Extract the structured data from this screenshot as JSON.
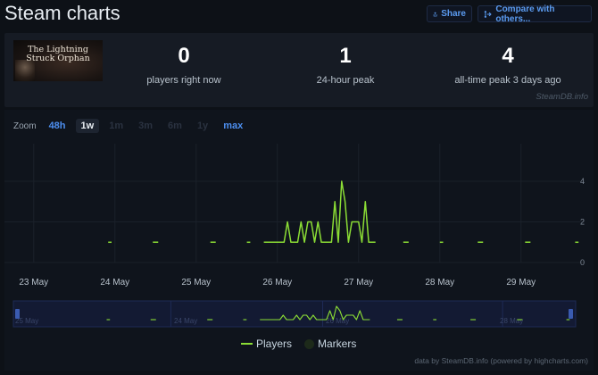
{
  "header": {
    "title": "Steam charts",
    "share_label": "Share",
    "compare_label": "Compare with others...",
    "share_icon": "share-icon",
    "compare_icon": "compare-icon"
  },
  "game": {
    "thumb_title": "The Lightning Struck Orphan"
  },
  "stats": {
    "now_value": "0",
    "now_label": "players right now",
    "peak24_value": "1",
    "peak24_label": "24-hour peak",
    "alltime_value": "4",
    "alltime_label": "all-time peak 3 days ago"
  },
  "watermark": "SteamDB.info",
  "zoom": {
    "label": "Zoom",
    "buttons": [
      {
        "label": "48h",
        "state": "active"
      },
      {
        "label": "1w",
        "state": "selected"
      },
      {
        "label": "1m",
        "state": "disabled"
      },
      {
        "label": "3m",
        "state": "disabled"
      },
      {
        "label": "6m",
        "state": "disabled"
      },
      {
        "label": "1y",
        "state": "disabled"
      },
      {
        "label": "max",
        "state": "active"
      }
    ]
  },
  "legend": {
    "players": "Players",
    "markers": "Markers"
  },
  "credit": "data by SteamDB.info (powered by highcharts.com)",
  "colors": {
    "players": "#8bdd35",
    "accent": "#4d8ff0"
  },
  "chart_data": {
    "type": "line",
    "title": "",
    "xlabel": "",
    "ylabel": "",
    "x_ticks": [
      "23 May",
      "24 May",
      "25 May",
      "26 May",
      "27 May",
      "28 May",
      "29 May"
    ],
    "y_ticks": [
      0,
      2,
      4
    ],
    "ylim": [
      0,
      4
    ],
    "navigator_labels": [
      "25 May",
      "24 May",
      "26 May",
      "28 May"
    ],
    "series": [
      {
        "name": "Players",
        "points": [
          [
            "2025-05-23T22:00",
            1
          ],
          [
            "2025-05-23T23:00",
            1
          ],
          [
            "2025-05-24T12:00",
            1
          ],
          [
            "2025-05-25T05:00",
            1
          ],
          [
            "2025-05-25T15:00",
            1
          ],
          [
            "2025-05-25T16:00",
            1
          ],
          [
            "2025-05-25T20:00",
            1
          ],
          [
            "2025-05-25T21:00",
            1
          ],
          [
            "2025-05-25T22:00",
            1
          ],
          [
            "2025-05-25T23:00",
            1
          ],
          [
            "2025-05-26T00:00",
            1
          ],
          [
            "2025-05-26T01:00",
            1
          ],
          [
            "2025-05-26T02:00",
            1
          ],
          [
            "2025-05-26T03:00",
            2
          ],
          [
            "2025-05-26T04:00",
            1
          ],
          [
            "2025-05-26T05:00",
            1
          ],
          [
            "2025-05-26T06:00",
            1
          ],
          [
            "2025-05-26T07:00",
            2
          ],
          [
            "2025-05-26T08:00",
            1
          ],
          [
            "2025-05-26T09:00",
            2
          ],
          [
            "2025-05-26T10:00",
            2
          ],
          [
            "2025-05-26T11:00",
            1
          ],
          [
            "2025-05-26T12:00",
            2
          ],
          [
            "2025-05-26T13:00",
            1
          ],
          [
            "2025-05-26T14:00",
            1
          ],
          [
            "2025-05-26T15:00",
            1
          ],
          [
            "2025-05-26T16:00",
            1
          ],
          [
            "2025-05-26T17:00",
            3
          ],
          [
            "2025-05-26T18:00",
            1
          ],
          [
            "2025-05-26T19:00",
            4
          ],
          [
            "2025-05-26T20:00",
            3
          ],
          [
            "2025-05-26T21:00",
            1
          ],
          [
            "2025-05-26T22:00",
            2
          ],
          [
            "2025-05-26T23:00",
            2
          ],
          [
            "2025-05-27T00:00",
            2
          ],
          [
            "2025-05-27T01:00",
            1
          ],
          [
            "2025-05-27T02:00",
            3
          ],
          [
            "2025-05-27T03:00",
            1
          ],
          [
            "2025-05-27T04:00",
            1
          ],
          [
            "2025-05-27T05:00",
            1
          ],
          [
            "2025-05-27T14:00",
            1
          ],
          [
            "2025-05-28T00:00",
            1
          ],
          [
            "2025-05-28T01:00",
            1
          ],
          [
            "2025-05-28T12:00",
            1
          ],
          [
            "2025-05-29T02:00",
            1
          ],
          [
            "2025-05-29T16:00",
            1
          ],
          [
            "2025-05-29T17:00",
            1
          ]
        ]
      }
    ],
    "grid": true,
    "legend_position": "bottom-center"
  }
}
